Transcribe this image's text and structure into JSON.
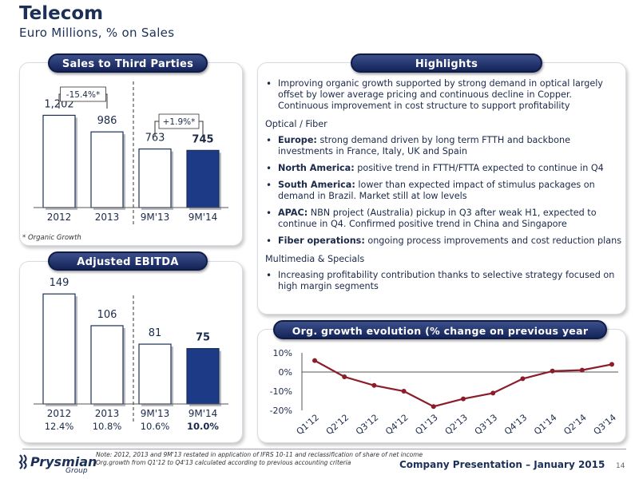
{
  "header": {
    "title": "Telecom",
    "subtitle": "Euro Millions, % on Sales"
  },
  "sales_panel": {
    "heading": "Sales to Third Parties",
    "growth_left": "-15.4%*",
    "growth_right": "+1.9%*",
    "footnote": "* Organic Growth"
  },
  "ebitda_panel": {
    "heading": "Adjusted EBITDA",
    "margins": [
      "12.4%",
      "10.8%",
      "10.6%",
      "10.0%"
    ]
  },
  "highlights": {
    "heading": "Highlights",
    "intro": "Improving organic growth supported by strong demand in optical largely offset by lower average pricing and continuous decline in Copper. Continuous improvement in cost structure to support profitability",
    "section1": "Optical / Fiber",
    "items": [
      {
        "label": "Europe:",
        "text": " strong demand driven by long term FTTH and backbone investments in France, Italy, UK and Spain"
      },
      {
        "label": "North America:",
        "text": " positive trend in FTTH/FTTA expected to continue in Q4"
      },
      {
        "label": "South America:",
        "text": " lower than expected impact of stimulus packages on demand in Brazil. Market still at low levels"
      },
      {
        "label": "APAC:",
        "text": " NBN project (Australia) pickup in Q3 after weak H1, expected to continue in Q4. Confirmed positive trend in China and Singapore"
      },
      {
        "label": "Fiber operations:",
        "text": " ongoing process improvements and cost reduction plans"
      }
    ],
    "section2": "Multimedia & Specials",
    "item_last": "Increasing profitability contribution thanks to selective strategy focused on high margin segments"
  },
  "growth_panel": {
    "heading": "Org. growth evolution (% change on previous year period)"
  },
  "footer": {
    "logo": "Prysmian",
    "logo_sub": "Group",
    "note1": "Note: 2012, 2013 and 9M'13 restated in application of IFRS 10-11 and reclassification of share of net income",
    "note2": "Org.growth from Q1'12 to Q4'13 calculated according to previous accounting criteria",
    "company": "Company Presentation – January 2015",
    "page": "14"
  },
  "colors": {
    "navy": "#1c2f57",
    "bar_highlight": "#1c3a85",
    "line": "#8b1c2a"
  },
  "chart_data": [
    {
      "type": "bar",
      "title": "Sales to Third Parties",
      "categories": [
        "2012",
        "2013",
        "9M'13",
        "9M'14"
      ],
      "values": [
        1202,
        986,
        763,
        745
      ],
      "value_labels": [
        "1,202",
        "986",
        "763",
        "745"
      ],
      "ylim": [
        0,
        1300
      ]
    },
    {
      "type": "bar",
      "title": "Adjusted EBITDA",
      "categories": [
        "2012",
        "2013",
        "9M'13",
        "9M'14"
      ],
      "values": [
        149,
        106,
        81,
        75
      ],
      "value_labels": [
        "149",
        "106",
        "81",
        "75"
      ],
      "ylim": [
        0,
        160
      ]
    },
    {
      "type": "line",
      "title": "Org. growth evolution (% change on previous year period)",
      "categories": [
        "Q1'12",
        "Q2'12",
        "Q3'12",
        "Q4'12",
        "Q1'13",
        "Q2'13",
        "Q3'13",
        "Q4'13",
        "Q1'14",
        "Q2'14",
        "Q3'14"
      ],
      "values": [
        6,
        -2.5,
        -7,
        -10,
        -18,
        -14,
        -11,
        -3.5,
        0.5,
        1,
        4
      ],
      "yticks": [
        "10%",
        "0%",
        "-10%",
        "-20%"
      ],
      "ylim": [
        -20,
        10
      ],
      "grid": false
    }
  ]
}
